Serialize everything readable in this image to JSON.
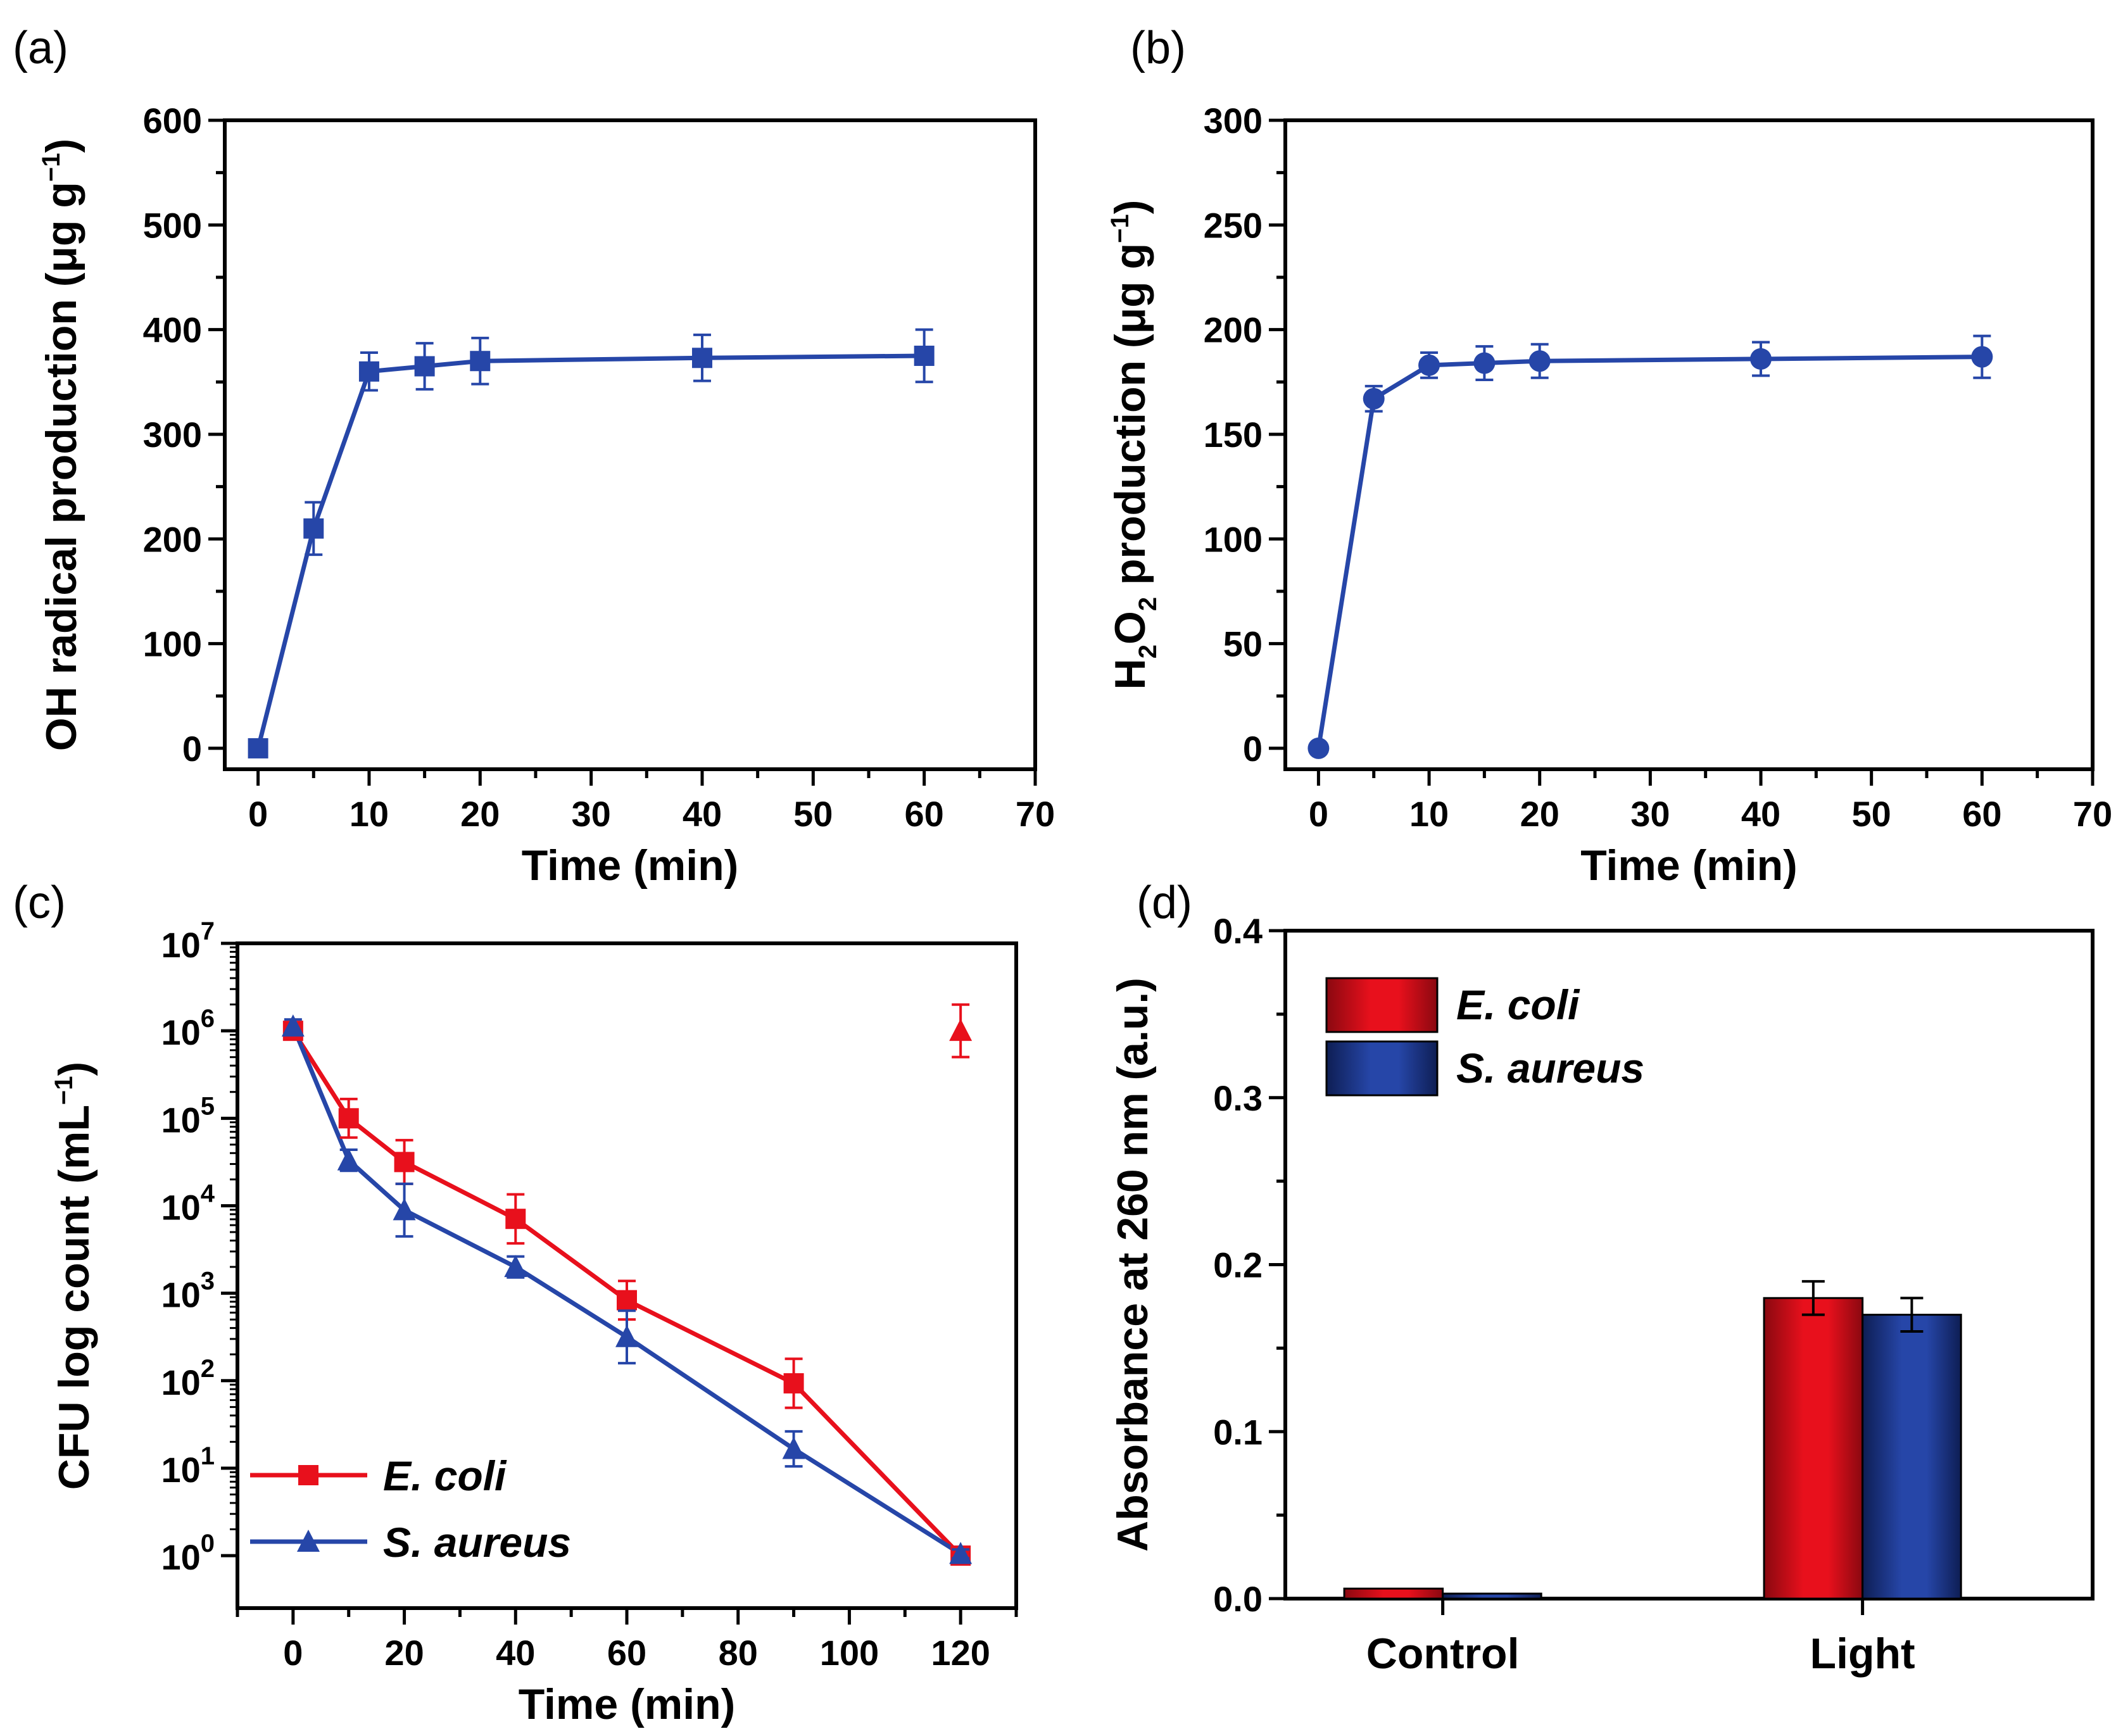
{
  "colors": {
    "blue": "#2646a8",
    "red": "#e8101c",
    "red_dark": "#8a0810",
    "blue_dark": "#0e1e54"
  },
  "chart_data": [
    {
      "panel": "(a)",
      "type": "line",
      "marker": "square",
      "xlabel": "Time (min)",
      "ylabel": "OH radical production (μg g⁻¹)",
      "xlim": [
        -3,
        70
      ],
      "ylim": [
        -20,
        600
      ],
      "xticks": [
        0,
        10,
        20,
        30,
        40,
        50,
        60,
        70
      ],
      "yticks": [
        0,
        100,
        200,
        300,
        400,
        500,
        600
      ],
      "series": [
        {
          "name": "OH radical",
          "color": "#2646a8",
          "x": [
            0,
            5,
            10,
            15,
            20,
            40,
            60
          ],
          "y": [
            0,
            210,
            360,
            365,
            370,
            373,
            375
          ],
          "err": [
            0,
            25,
            18,
            22,
            22,
            22,
            25
          ]
        }
      ]
    },
    {
      "panel": "(b)",
      "type": "line",
      "marker": "circle",
      "xlabel": "Time (min)",
      "ylabel": "H₂O₂ production (μg g⁻¹)",
      "xlim": [
        -3,
        70
      ],
      "ylim": [
        -10,
        300
      ],
      "xticks": [
        0,
        10,
        20,
        30,
        40,
        50,
        60,
        70
      ],
      "yticks": [
        0,
        50,
        100,
        150,
        200,
        250,
        300
      ],
      "series": [
        {
          "name": "H2O2",
          "color": "#2646a8",
          "x": [
            0,
            5,
            10,
            15,
            20,
            40,
            60
          ],
          "y": [
            0,
            167,
            183,
            184,
            185,
            186,
            187
          ],
          "err": [
            0,
            6,
            6,
            8,
            8,
            8,
            10
          ]
        }
      ]
    },
    {
      "panel": "(c)",
      "type": "line",
      "yscale": "log",
      "xlabel": "Time (min)",
      "ylabel": "CFU log count (mL⁻¹)",
      "xlim": [
        -10,
        130
      ],
      "ylog_range": [
        -0.6,
        7
      ],
      "xticks": [
        0,
        20,
        40,
        60,
        80,
        100,
        120
      ],
      "ytick_exponents": [
        0,
        1,
        2,
        3,
        4,
        5,
        6,
        7
      ],
      "legend_position": "bottom-left",
      "series": [
        {
          "name": "E. coli",
          "color": "#e8101c",
          "marker": "square",
          "x": [
            0,
            10,
            20,
            40,
            60,
            90,
            120
          ],
          "log10_y": [
            6.0,
            5.0,
            4.5,
            3.85,
            2.92,
            1.97,
            0.0
          ],
          "log10_err": [
            0.08,
            0.22,
            0.25,
            0.28,
            0.22,
            0.28,
            0.05
          ]
        },
        {
          "name": "S. aureus",
          "color": "#2646a8",
          "marker": "triangle",
          "x": [
            0,
            10,
            20,
            40,
            60,
            90,
            120
          ],
          "log10_y": [
            6.05,
            4.52,
            3.95,
            3.3,
            2.5,
            1.22,
            0.02
          ],
          "log10_err": [
            0.08,
            0.12,
            0.3,
            0.12,
            0.3,
            0.2,
            0.05
          ]
        }
      ],
      "extra_point": {
        "x": 120,
        "log10_y": 6.0,
        "log10_err": 0.3,
        "color": "#e8101c",
        "marker": "triangle"
      }
    },
    {
      "panel": "(d)",
      "type": "bar",
      "ylabel": "Absorbance at 260 nm (a.u.)",
      "ylim": [
        0,
        0.4
      ],
      "yticks": [
        "0.0",
        "0.1",
        "0.2",
        "0.3",
        "0.4"
      ],
      "categories": [
        "Control",
        "Light"
      ],
      "legend_position": "top-left",
      "series": [
        {
          "name": "E. coli",
          "color": "#e8101c",
          "values": [
            0.006,
            0.18
          ],
          "err": [
            0,
            0.01
          ]
        },
        {
          "name": "S. aureus",
          "color": "#2646a8",
          "values": [
            0.003,
            0.17
          ],
          "err": [
            0,
            0.01
          ]
        }
      ]
    }
  ]
}
